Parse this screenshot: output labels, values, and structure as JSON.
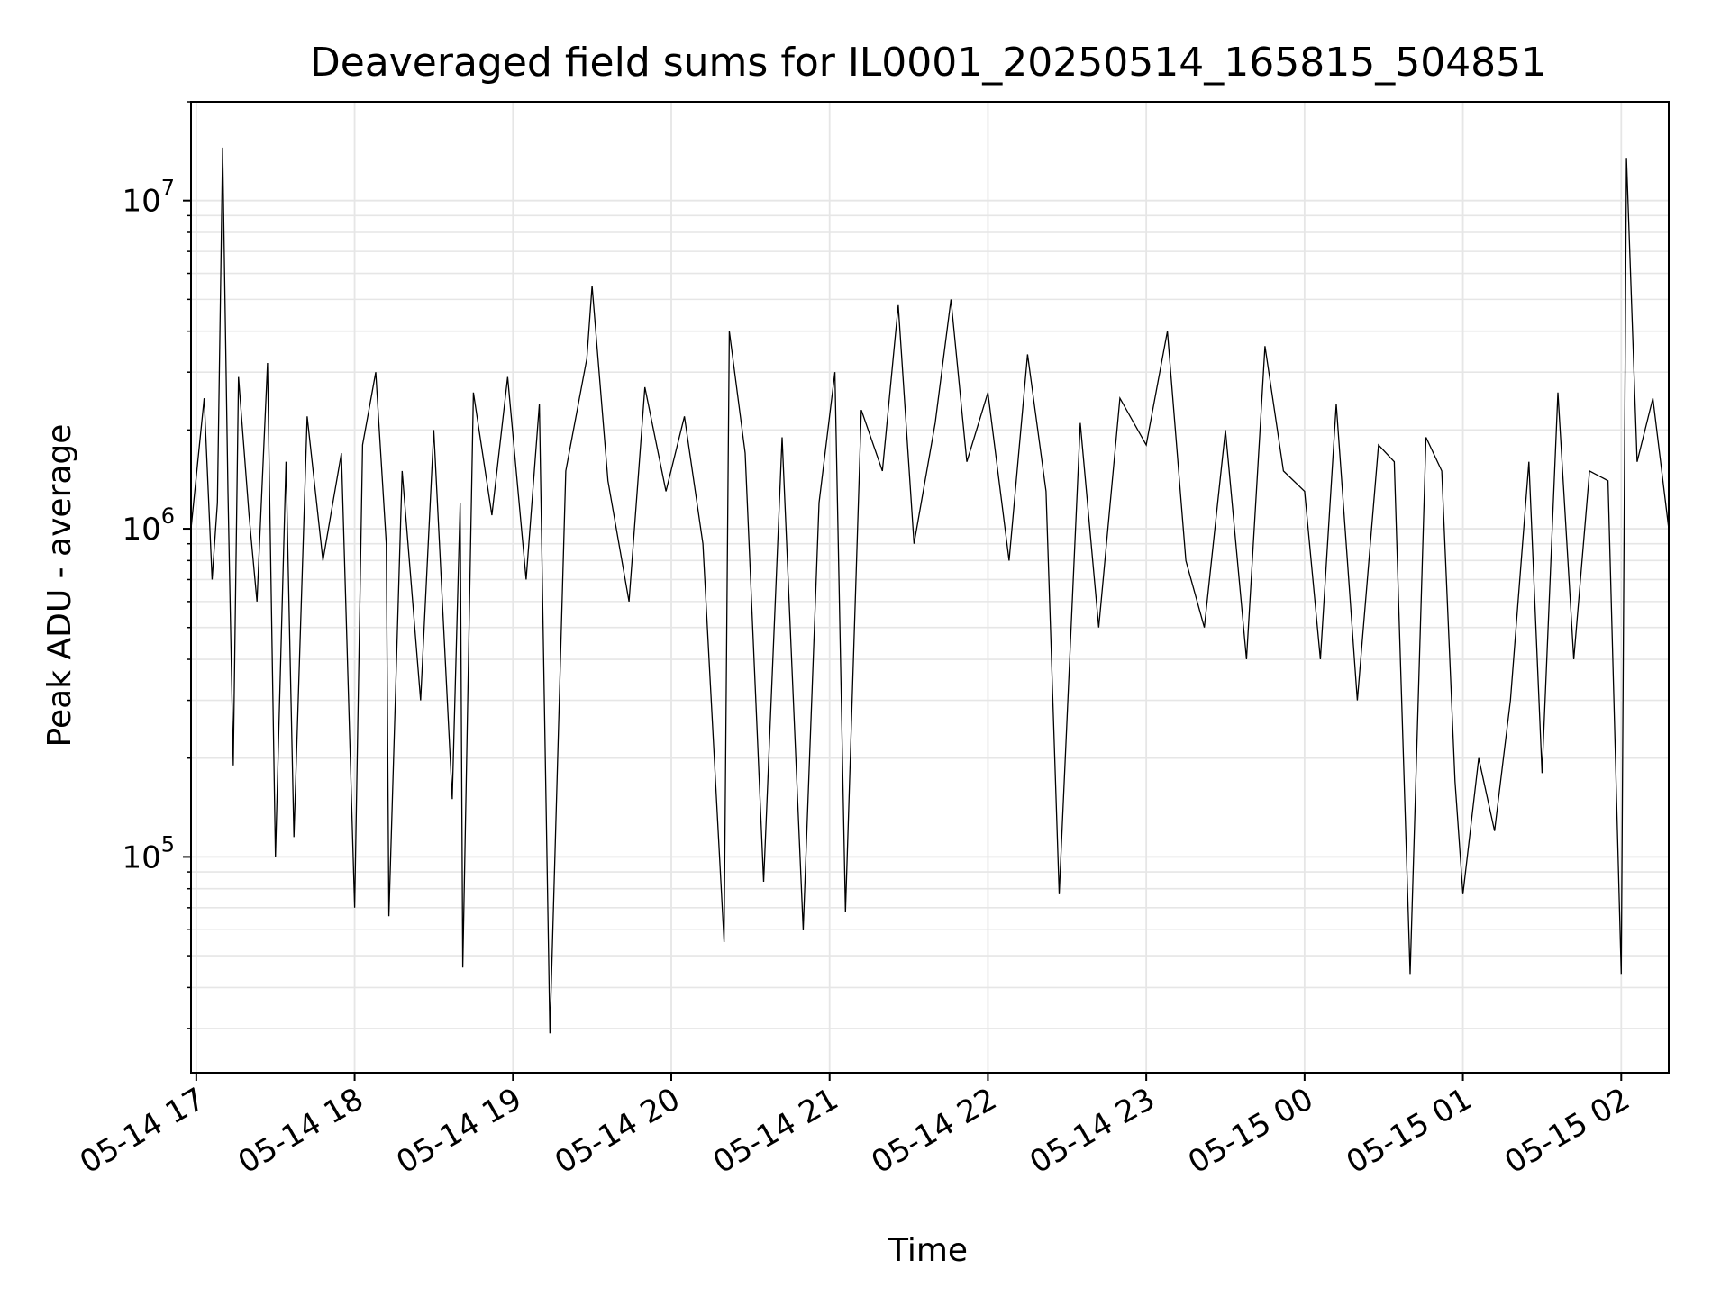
{
  "chart_data": {
    "type": "line",
    "title": "Deaveraged field sums for IL0001_20250514_165815_504851",
    "xlabel": "Time",
    "ylabel": "Peak ADU - average",
    "x_ticks": [
      "05-14 17",
      "05-14 18",
      "05-14 19",
      "05-14 20",
      "05-14 21",
      "05-14 22",
      "05-14 23",
      "05-15 00",
      "05-15 01",
      "05-15 02"
    ],
    "y_ticks": [
      {
        "base": "10",
        "exp": "5"
      },
      {
        "base": "10",
        "exp": "6"
      },
      {
        "base": "10",
        "exp": "7"
      }
    ],
    "xlim": [
      "2025-05-14 16:58",
      "2025-05-15 02:18"
    ],
    "ylim": [
      22000,
      20000000
    ],
    "yscale": "log",
    "grid": true,
    "series": [
      {
        "color": "#000000",
        "points": [
          [
            "2025-05-14 16:58",
            1000000
          ],
          [
            "2025-05-14 17:03",
            2500000
          ],
          [
            "2025-05-14 17:06",
            700000
          ],
          [
            "2025-05-14 17:08",
            1200000
          ],
          [
            "2025-05-14 17:10",
            14500000
          ],
          [
            "2025-05-14 17:12",
            1300000
          ],
          [
            "2025-05-14 17:14",
            190000
          ],
          [
            "2025-05-14 17:16",
            2900000
          ],
          [
            "2025-05-14 17:20",
            1100000
          ],
          [
            "2025-05-14 17:23",
            600000
          ],
          [
            "2025-05-14 17:27",
            3200000
          ],
          [
            "2025-05-14 17:30",
            100000
          ],
          [
            "2025-05-14 17:34",
            1600000
          ],
          [
            "2025-05-14 17:37",
            115000
          ],
          [
            "2025-05-14 17:42",
            2200000
          ],
          [
            "2025-05-14 17:48",
            800000
          ],
          [
            "2025-05-14 17:55",
            1700000
          ],
          [
            "2025-05-14 18:00",
            70000
          ],
          [
            "2025-05-14 18:03",
            1800000
          ],
          [
            "2025-05-14 18:08",
            3000000
          ],
          [
            "2025-05-14 18:12",
            900000
          ],
          [
            "2025-05-14 18:13",
            66000
          ],
          [
            "2025-05-14 18:18",
            1500000
          ],
          [
            "2025-05-14 18:25",
            300000
          ],
          [
            "2025-05-14 18:30",
            2000000
          ],
          [
            "2025-05-14 18:37",
            150000
          ],
          [
            "2025-05-14 18:40",
            1200000
          ],
          [
            "2025-05-14 18:41",
            46000
          ],
          [
            "2025-05-14 18:45",
            2600000
          ],
          [
            "2025-05-14 18:52",
            1100000
          ],
          [
            "2025-05-14 18:58",
            2900000
          ],
          [
            "2025-05-14 19:05",
            700000
          ],
          [
            "2025-05-14 19:10",
            2400000
          ],
          [
            "2025-05-14 19:14",
            29000
          ],
          [
            "2025-05-14 19:20",
            1500000
          ],
          [
            "2025-05-14 19:28",
            3300000
          ],
          [
            "2025-05-14 19:30",
            5500000
          ],
          [
            "2025-05-14 19:36",
            1400000
          ],
          [
            "2025-05-14 19:44",
            600000
          ],
          [
            "2025-05-14 19:50",
            2700000
          ],
          [
            "2025-05-14 19:58",
            1300000
          ],
          [
            "2025-05-14 20:05",
            2200000
          ],
          [
            "2025-05-14 20:12",
            900000
          ],
          [
            "2025-05-14 20:20",
            55000
          ],
          [
            "2025-05-14 20:22",
            4000000
          ],
          [
            "2025-05-14 20:28",
            1700000
          ],
          [
            "2025-05-14 20:35",
            84000
          ],
          [
            "2025-05-14 20:42",
            1900000
          ],
          [
            "2025-05-14 20:50",
            60000
          ],
          [
            "2025-05-14 20:56",
            1200000
          ],
          [
            "2025-05-14 21:02",
            3000000
          ],
          [
            "2025-05-14 21:06",
            68000
          ],
          [
            "2025-05-14 21:12",
            2300000
          ],
          [
            "2025-05-14 21:20",
            1500000
          ],
          [
            "2025-05-14 21:26",
            4800000
          ],
          [
            "2025-05-14 21:32",
            900000
          ],
          [
            "2025-05-14 21:40",
            2100000
          ],
          [
            "2025-05-14 21:46",
            5000000
          ],
          [
            "2025-05-14 21:52",
            1600000
          ],
          [
            "2025-05-14 22:00",
            2600000
          ],
          [
            "2025-05-14 22:08",
            800000
          ],
          [
            "2025-05-14 22:15",
            3400000
          ],
          [
            "2025-05-14 22:22",
            1300000
          ],
          [
            "2025-05-14 22:27",
            77000
          ],
          [
            "2025-05-14 22:35",
            2100000
          ],
          [
            "2025-05-14 22:42",
            500000
          ],
          [
            "2025-05-14 22:50",
            2500000
          ],
          [
            "2025-05-14 23:00",
            1800000
          ],
          [
            "2025-05-14 23:08",
            4000000
          ],
          [
            "2025-05-14 23:15",
            800000
          ],
          [
            "2025-05-14 23:22",
            500000
          ],
          [
            "2025-05-14 23:30",
            2000000
          ],
          [
            "2025-05-14 23:38",
            400000
          ],
          [
            "2025-05-14 23:45",
            3600000
          ],
          [
            "2025-05-14 23:52",
            1500000
          ],
          [
            "2025-05-15 00:00",
            1300000
          ],
          [
            "2025-05-15 00:06",
            400000
          ],
          [
            "2025-05-15 00:12",
            2400000
          ],
          [
            "2025-05-15 00:20",
            300000
          ],
          [
            "2025-05-15 00:28",
            1800000
          ],
          [
            "2025-05-15 00:34",
            1600000
          ],
          [
            "2025-05-15 00:40",
            44000
          ],
          [
            "2025-05-15 00:46",
            1900000
          ],
          [
            "2025-05-15 00:52",
            1500000
          ],
          [
            "2025-05-15 00:57",
            170000
          ],
          [
            "2025-05-15 01:00",
            77000
          ],
          [
            "2025-05-15 01:06",
            200000
          ],
          [
            "2025-05-15 01:12",
            120000
          ],
          [
            "2025-05-15 01:18",
            300000
          ],
          [
            "2025-05-15 01:25",
            1600000
          ],
          [
            "2025-05-15 01:30",
            180000
          ],
          [
            "2025-05-15 01:36",
            2600000
          ],
          [
            "2025-05-15 01:42",
            400000
          ],
          [
            "2025-05-15 01:48",
            1500000
          ],
          [
            "2025-05-15 01:55",
            1400000
          ],
          [
            "2025-05-15 02:00",
            44000
          ],
          [
            "2025-05-15 02:02",
            13500000
          ],
          [
            "2025-05-15 02:06",
            1600000
          ],
          [
            "2025-05-15 02:12",
            2500000
          ],
          [
            "2025-05-15 02:18",
            1000000
          ]
        ]
      }
    ]
  }
}
